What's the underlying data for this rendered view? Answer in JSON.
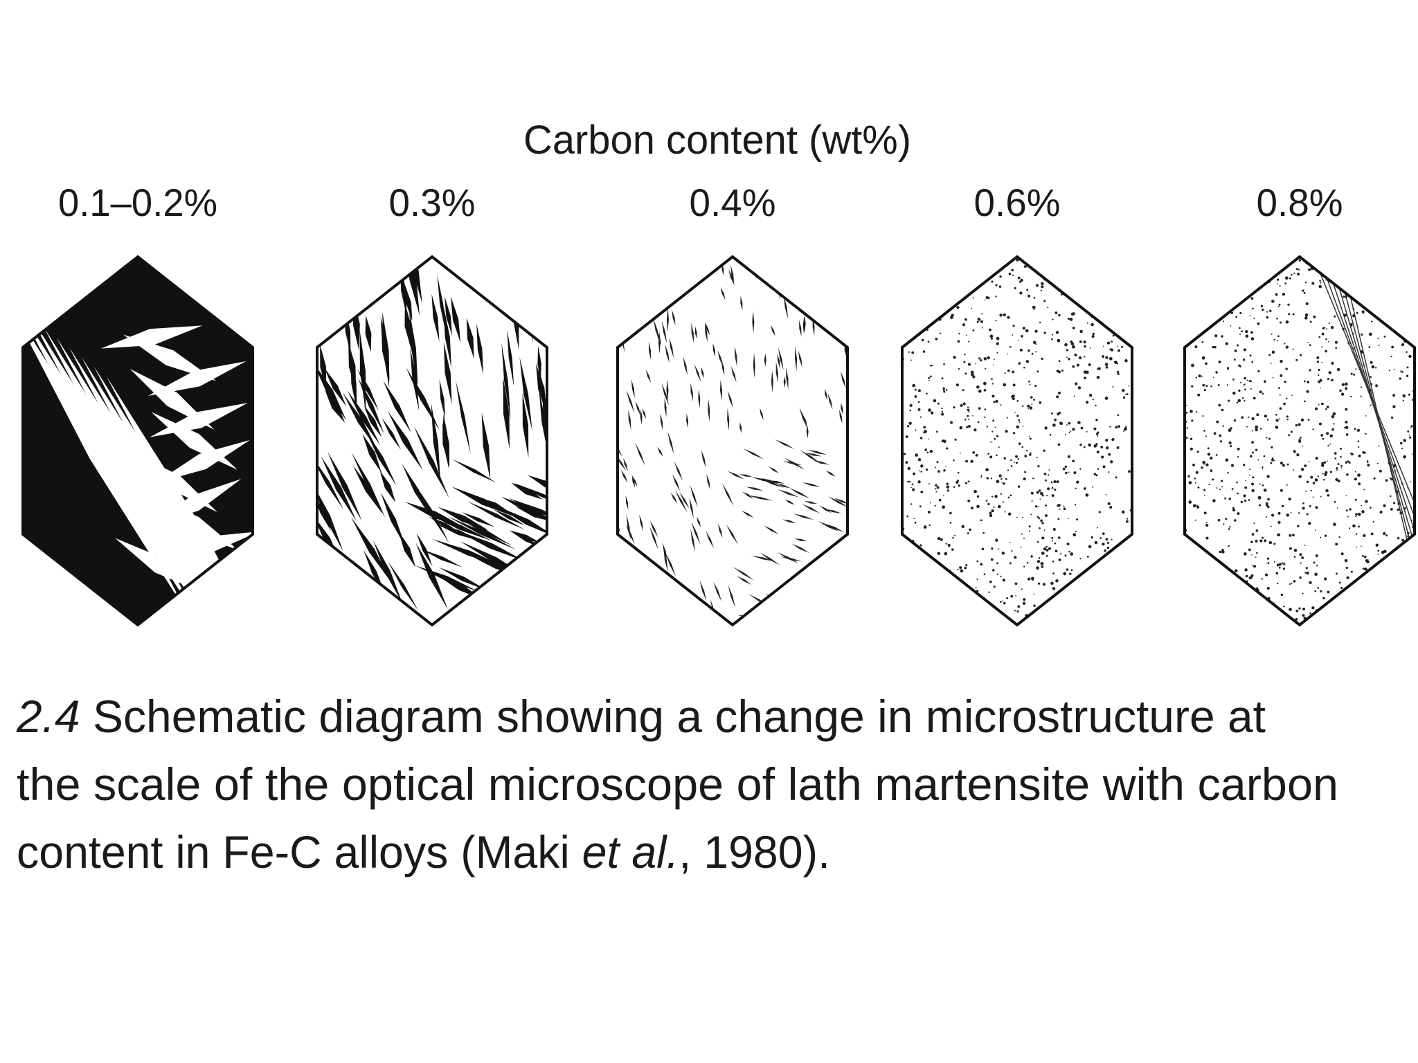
{
  "header": {
    "title": "Carbon content (wt%)"
  },
  "panels": [
    {
      "label": "0.1–0.2%"
    },
    {
      "label": "0.3%"
    },
    {
      "label": "0.4%"
    },
    {
      "label": "0.6%"
    },
    {
      "label": "0.8%"
    }
  ],
  "caption": {
    "lines": [
      [
        {
          "text": "2.4",
          "style": "italic"
        },
        {
          "text": " Schematic diagram showing a change in microstructure at",
          "style": "normal"
        }
      ],
      [
        {
          "text": "the scale of the optical microscope of lath martensite with carbon",
          "style": "normal"
        }
      ],
      [
        {
          "text": "content in Fe-C alloys (Maki ",
          "style": "normal"
        },
        {
          "text": "et al.",
          "style": "italic"
        },
        {
          "text": ", 1980).",
          "style": "normal"
        }
      ]
    ]
  }
}
